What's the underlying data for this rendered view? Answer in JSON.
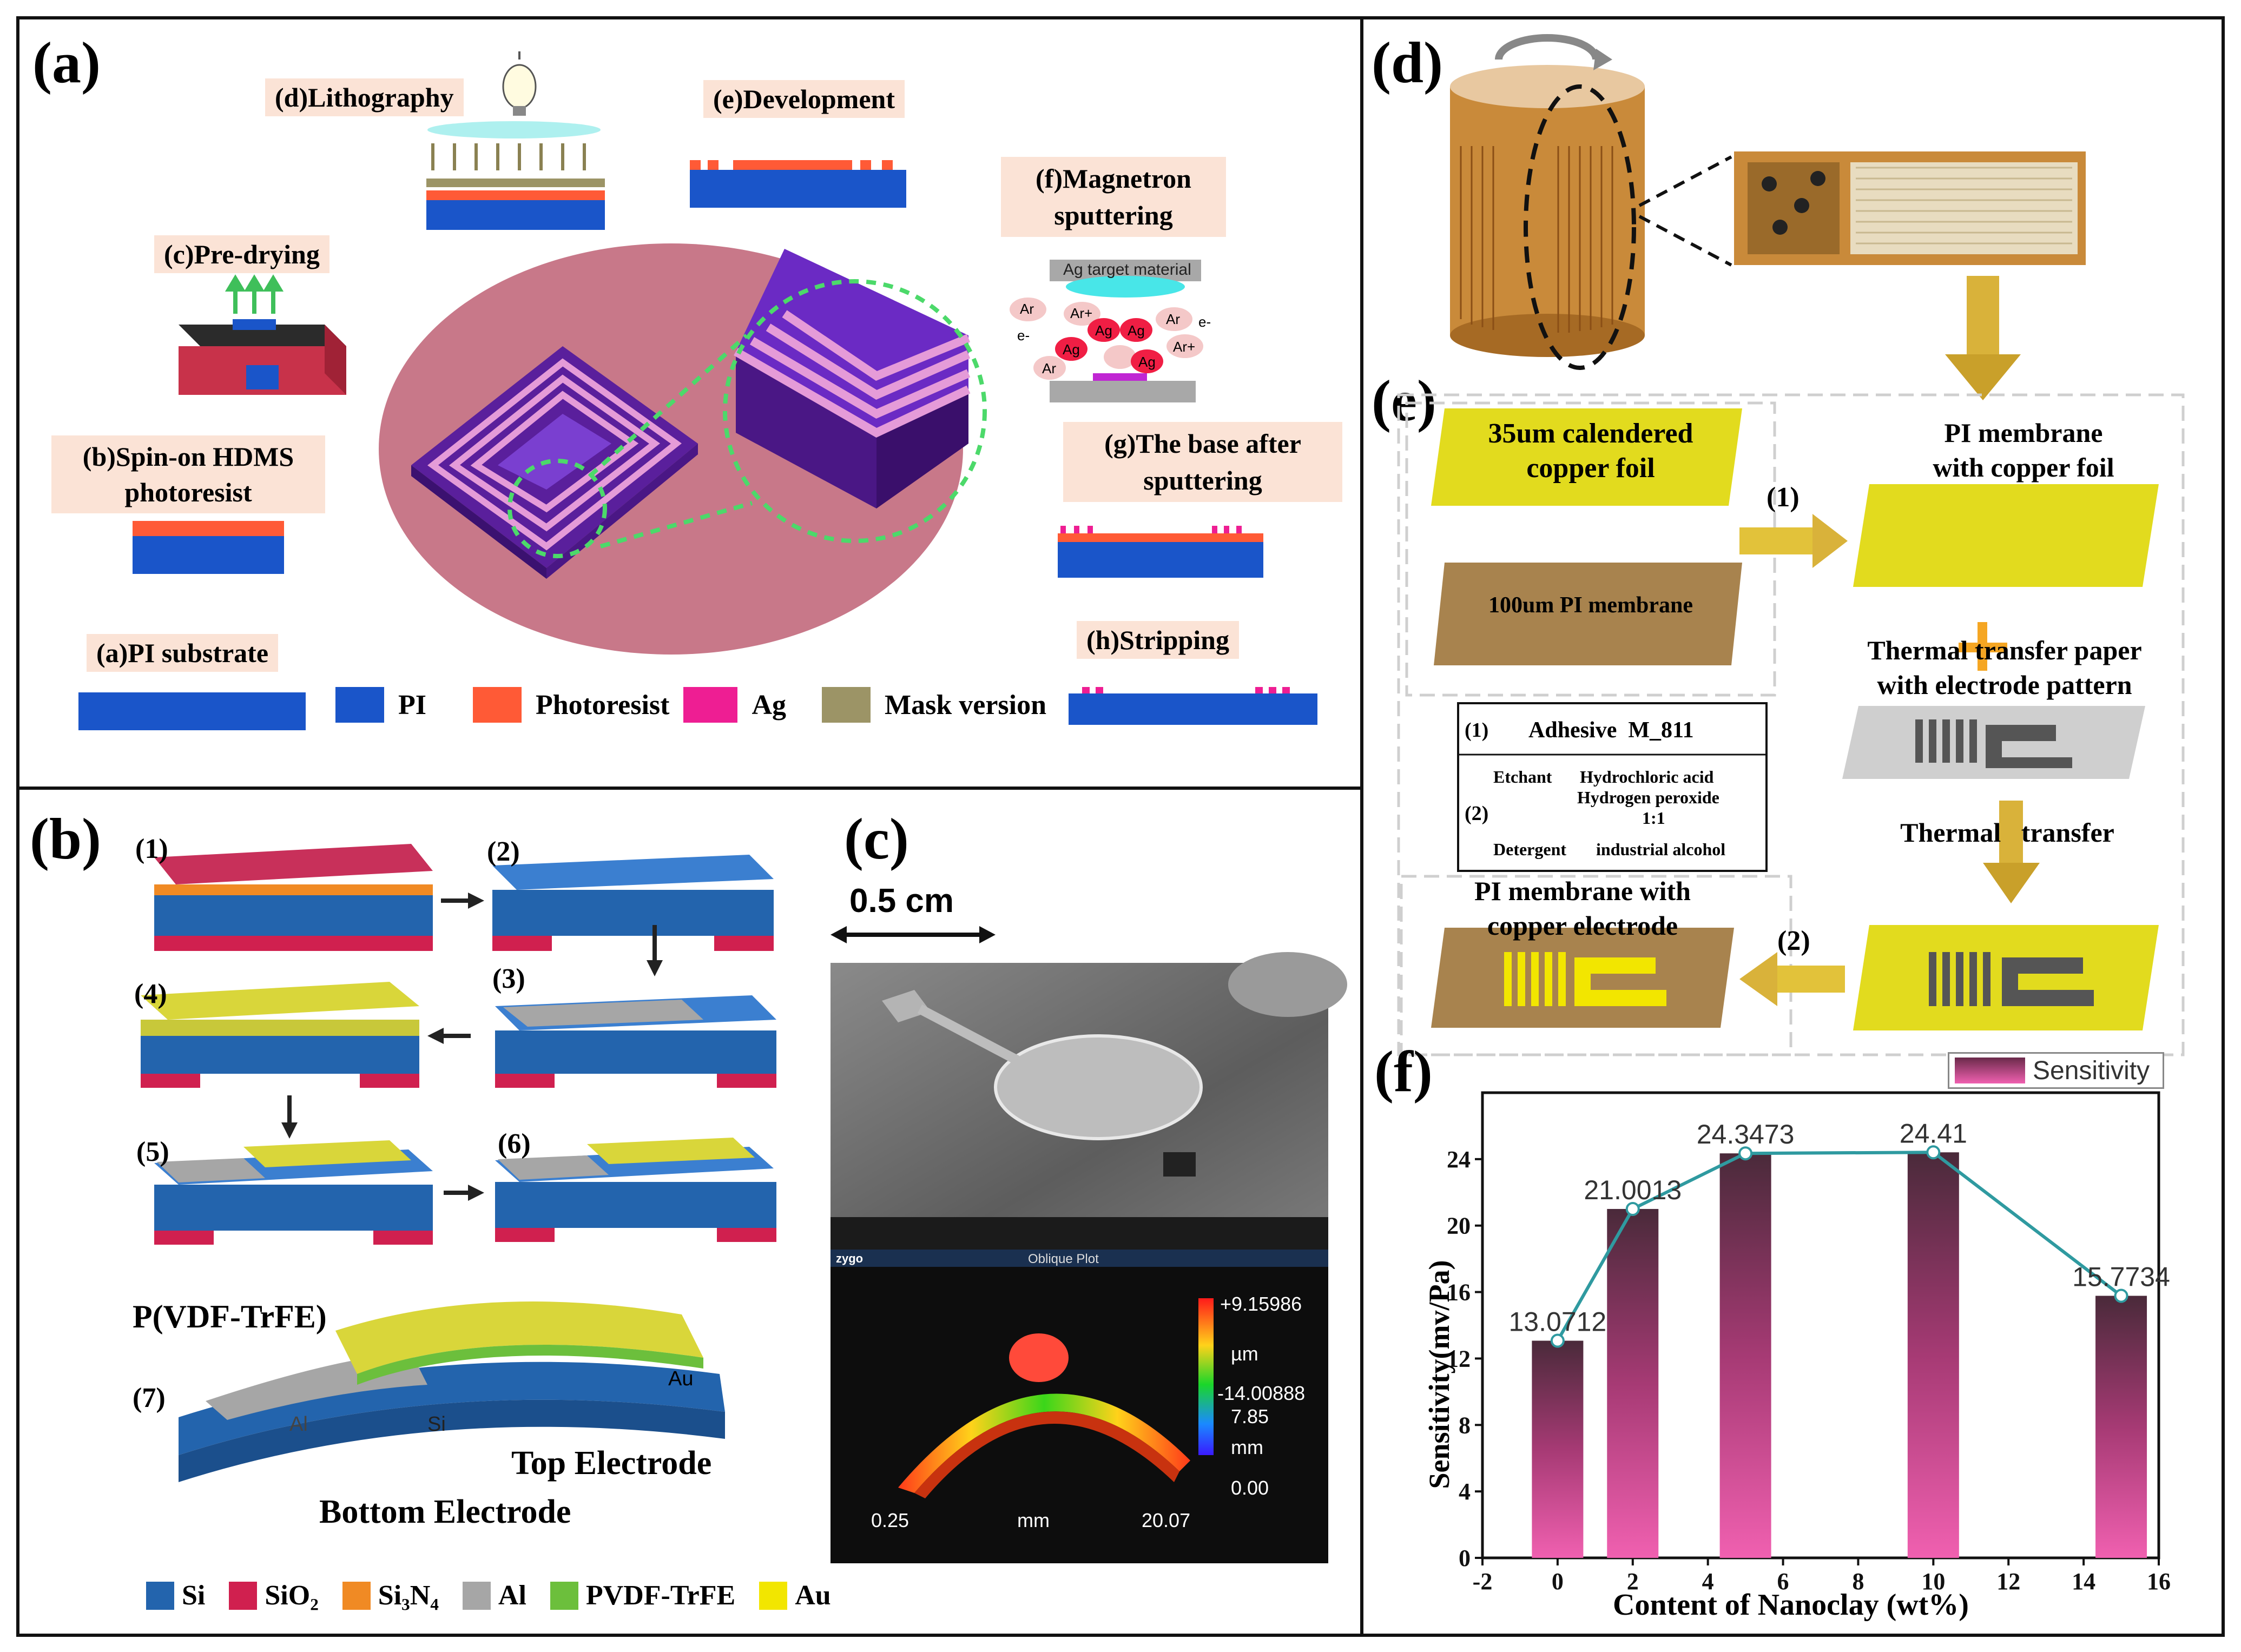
{
  "panel_a": {
    "letter": "(a)",
    "steps": {
      "a": "(a)PI substrate",
      "b_line1": "(b)Spin-on HDMS",
      "b_line2": "photoresist",
      "c": "(c)Pre-drying",
      "d": "(d)Lithography",
      "e": "(e)Development",
      "f_line1": "(f)Magnetron",
      "f_line2": "sputtering",
      "g_line1": "(g)The base after",
      "g_line2": "sputtering",
      "h": "(h)Stripping"
    },
    "sputter": {
      "target": "Ag target material",
      "ar": "Ar",
      "ar_plus": "Ar+",
      "ag": "Ag",
      "electron": "e-"
    },
    "legend": [
      {
        "label": "PI",
        "color": "#1a55c9"
      },
      {
        "label": "Photoresist",
        "color": "#ff5a36"
      },
      {
        "label": "Ag",
        "color": "#ee1e93"
      },
      {
        "label": "Mask version",
        "color": "#9c9466"
      }
    ]
  },
  "panel_b": {
    "letter": "(b)",
    "steps": [
      "(1)",
      "(2)",
      "(3)",
      "(4)",
      "(5)",
      "(6)",
      "(7)"
    ],
    "labels": {
      "pvdf": "P(VDF-TrFE)",
      "au": "Au",
      "al": "Al",
      "si": "Si",
      "top_electrode": "Top Electrode",
      "bottom_electrode": "Bottom Electrode"
    },
    "legend": [
      {
        "label": "Si",
        "color": "#2364ad"
      },
      {
        "label": "SiO₂",
        "color": "#d0204f"
      },
      {
        "label": "Si₃N₄",
        "color": "#f08a24"
      },
      {
        "label": "Al",
        "color": "#a6a6a6"
      },
      {
        "label": "PVDF-TrFE",
        "color": "#6cbf3c"
      },
      {
        "label": "Au",
        "color": "#f2e600"
      }
    ]
  },
  "panel_c": {
    "letter": "(c)",
    "scale": "0.5 cm",
    "plot_title": "Oblique Plot",
    "zygo": "zygo",
    "colorbar": {
      "max": "+9.15986",
      "unit": "µm",
      "min": "-14.00888"
    },
    "zaxis": {
      "top": "7.85",
      "unit": "mm",
      "bottom": "0.00"
    },
    "xaxis": {
      "left": "0.25",
      "unit": "mm",
      "right": "20.07"
    }
  },
  "panel_d": {
    "letter": "(d)"
  },
  "panel_e": {
    "letter": "(e)",
    "copper_foil": [
      "35um calendered",
      "copper foil"
    ],
    "pi_membrane": "100um PI membrane",
    "pi_with_foil": [
      "PI membrane",
      "with copper foil"
    ],
    "thermal_paper": [
      "Thermal transfer paper",
      "with electrode pattern"
    ],
    "thermal_transfer": "Thermal   transfer",
    "pi_with_electrode": [
      "PI membrane with",
      "copper electrode"
    ],
    "step1": "(1)",
    "step2": "(2)",
    "table": {
      "r1_num": "(1)",
      "r1_text": "Adhesive  M_811",
      "etchant": "Etchant",
      "etchant_v1": "Hydrochloric acid",
      "etchant_v2": "Hydrogen peroxide",
      "ratio": "1:1",
      "r2_num": "(2)",
      "detergent": "Detergent",
      "detergent_v": "industrial alcohol"
    }
  },
  "panel_f": {
    "letter": "(f)"
  },
  "chart_data": {
    "type": "bar",
    "xlabel": "Content of Nanoclay (wt%)",
    "ylabel": "Sensitivity(mv/Pa)",
    "legend": "Sensitivity",
    "x": [
      0,
      2,
      5,
      10,
      15
    ],
    "values": [
      13.0712,
      21.0013,
      24.3473,
      24.41,
      15.7734
    ],
    "value_labels": [
      "13.0712",
      "21.0013",
      "24.3473",
      "24.41",
      "15.7734"
    ],
    "xlim": [
      -2,
      16
    ],
    "ylim": [
      0,
      28
    ],
    "xticks": [
      "-2",
      "0",
      "2",
      "4",
      "6",
      "8",
      "10",
      "12",
      "14",
      "16"
    ],
    "yticks": [
      "0",
      "4",
      "8",
      "12",
      "16",
      "20",
      "24"
    ],
    "bar_color": "#e6559c",
    "line_color": "#2f9aa0"
  }
}
